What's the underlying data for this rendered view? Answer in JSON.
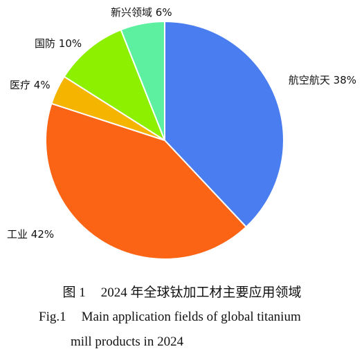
{
  "chart_data": {
    "type": "pie",
    "slices": [
      {
        "label": "航空航天",
        "value": 38,
        "value_text": "38%",
        "color": "#4a7ef0"
      },
      {
        "label": "工业",
        "value": 42,
        "value_text": "42%",
        "color": "#fa6414"
      },
      {
        "label": "医疗",
        "value": 4,
        "value_text": "4%",
        "color": "#f5b400"
      },
      {
        "label": "国防",
        "value": 10,
        "value_text": "10%",
        "color": "#8cf000"
      },
      {
        "label": "新兴领域",
        "value": 6,
        "value_text": "6%",
        "color": "#5cf0a0"
      }
    ],
    "start_angle": "12 o'clock",
    "direction": "clockwise"
  },
  "caption": {
    "zh_prefix": "图 1",
    "zh_text": "2024 年全球钛加工材主要应用领域",
    "en_prefix": "Fig.1",
    "en_line1": "Main application fields of global titanium",
    "en_line2": "mill products in 2024"
  }
}
